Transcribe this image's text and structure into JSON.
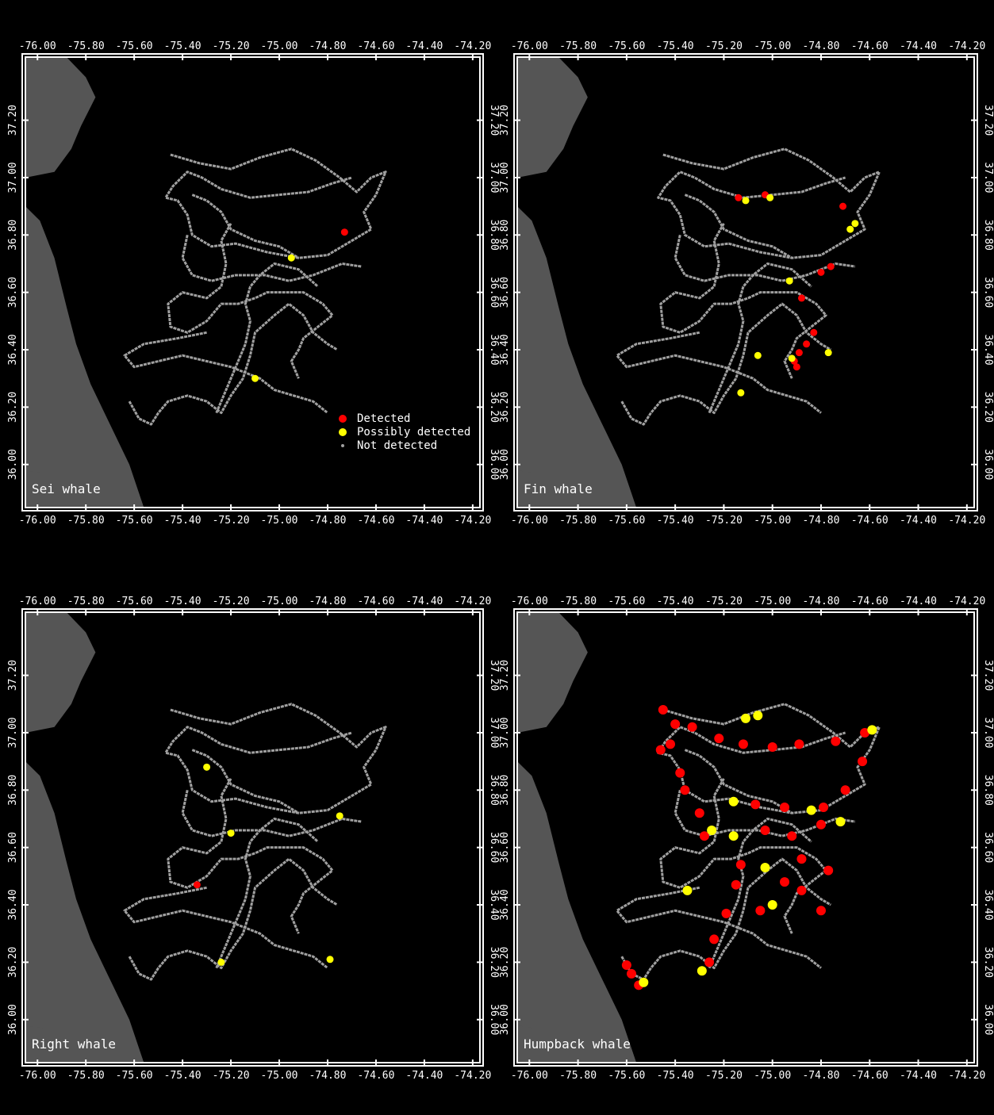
{
  "x_ticks": [
    "-76.00",
    "-75.80",
    "-75.60",
    "-75.40",
    "-75.20",
    "-75.00",
    "-74.80",
    "-74.60",
    "-74.40",
    "-74.20"
  ],
  "y_ticks": [
    "36.00",
    "36.20",
    "36.40",
    "36.60",
    "36.80",
    "37.00",
    "37.20"
  ],
  "legend": {
    "detected": "Detected",
    "possibly": "Possibly detected",
    "not_detected": "Not detected"
  },
  "colors": {
    "background": "#000000",
    "frame": "#ffffff",
    "land": "#555555",
    "track": "#a0a0a0",
    "detected": "#ff0000",
    "possibly": "#ffff00",
    "not_detected": "#a0a0a0"
  },
  "panels": [
    {
      "label": "Sei whale",
      "show_legend": true,
      "detections": [
        {
          "lon": -74.73,
          "lat": 36.81,
          "status": "detected"
        },
        {
          "lon": -74.95,
          "lat": 36.72,
          "status": "possibly"
        },
        {
          "lon": -75.1,
          "lat": 36.3,
          "status": "possibly"
        }
      ]
    },
    {
      "label": "Fin whale",
      "show_legend": false,
      "detections": [
        {
          "lon": -75.14,
          "lat": 36.93,
          "status": "detected"
        },
        {
          "lon": -75.11,
          "lat": 36.92,
          "status": "possibly"
        },
        {
          "lon": -75.03,
          "lat": 36.94,
          "status": "detected"
        },
        {
          "lon": -75.01,
          "lat": 36.93,
          "status": "possibly"
        },
        {
          "lon": -74.71,
          "lat": 36.9,
          "status": "detected"
        },
        {
          "lon": -74.66,
          "lat": 36.84,
          "status": "possibly"
        },
        {
          "lon": -74.68,
          "lat": 36.82,
          "status": "possibly"
        },
        {
          "lon": -74.8,
          "lat": 36.67,
          "status": "detected"
        },
        {
          "lon": -74.76,
          "lat": 36.69,
          "status": "detected"
        },
        {
          "lon": -74.93,
          "lat": 36.64,
          "status": "possibly"
        },
        {
          "lon": -74.88,
          "lat": 36.58,
          "status": "detected"
        },
        {
          "lon": -74.83,
          "lat": 36.46,
          "status": "detected"
        },
        {
          "lon": -74.86,
          "lat": 36.42,
          "status": "detected"
        },
        {
          "lon": -74.89,
          "lat": 36.39,
          "status": "detected"
        },
        {
          "lon": -74.91,
          "lat": 36.36,
          "status": "detected"
        },
        {
          "lon": -74.9,
          "lat": 36.34,
          "status": "detected"
        },
        {
          "lon": -74.92,
          "lat": 36.37,
          "status": "possibly"
        },
        {
          "lon": -75.06,
          "lat": 36.38,
          "status": "possibly"
        },
        {
          "lon": -75.13,
          "lat": 36.25,
          "status": "possibly"
        },
        {
          "lon": -74.77,
          "lat": 36.39,
          "status": "possibly"
        }
      ]
    },
    {
      "label": "Right whale",
      "show_legend": false,
      "detections": [
        {
          "lon": -75.3,
          "lat": 36.88,
          "status": "possibly"
        },
        {
          "lon": -74.75,
          "lat": 36.71,
          "status": "possibly"
        },
        {
          "lon": -75.2,
          "lat": 36.65,
          "status": "possibly"
        },
        {
          "lon": -75.34,
          "lat": 36.47,
          "status": "detected"
        },
        {
          "lon": -75.24,
          "lat": 36.2,
          "status": "possibly"
        },
        {
          "lon": -74.79,
          "lat": 36.21,
          "status": "possibly"
        }
      ]
    },
    {
      "label": "Humpback whale",
      "show_legend": false,
      "detections": [
        {
          "lon": -75.45,
          "lat": 37.08,
          "status": "detected"
        },
        {
          "lon": -75.4,
          "lat": 37.03,
          "status": "detected"
        },
        {
          "lon": -75.42,
          "lat": 36.96,
          "status": "detected"
        },
        {
          "lon": -75.46,
          "lat": 36.94,
          "status": "detected"
        },
        {
          "lon": -75.33,
          "lat": 37.02,
          "status": "detected"
        },
        {
          "lon": -75.22,
          "lat": 36.98,
          "status": "detected"
        },
        {
          "lon": -75.12,
          "lat": 36.96,
          "status": "detected"
        },
        {
          "lon": -75.06,
          "lat": 37.06,
          "status": "possibly"
        },
        {
          "lon": -75.11,
          "lat": 37.05,
          "status": "possibly"
        },
        {
          "lon": -75.0,
          "lat": 36.95,
          "status": "detected"
        },
        {
          "lon": -74.89,
          "lat": 36.96,
          "status": "detected"
        },
        {
          "lon": -74.74,
          "lat": 36.97,
          "status": "detected"
        },
        {
          "lon": -74.62,
          "lat": 37.0,
          "status": "detected"
        },
        {
          "lon": -74.59,
          "lat": 37.01,
          "status": "possibly"
        },
        {
          "lon": -74.63,
          "lat": 36.9,
          "status": "detected"
        },
        {
          "lon": -74.7,
          "lat": 36.8,
          "status": "detected"
        },
        {
          "lon": -74.79,
          "lat": 36.74,
          "status": "detected"
        },
        {
          "lon": -74.84,
          "lat": 36.73,
          "status": "possibly"
        },
        {
          "lon": -74.95,
          "lat": 36.74,
          "status": "detected"
        },
        {
          "lon": -75.07,
          "lat": 36.75,
          "status": "detected"
        },
        {
          "lon": -75.16,
          "lat": 36.76,
          "status": "possibly"
        },
        {
          "lon": -75.3,
          "lat": 36.72,
          "status": "detected"
        },
        {
          "lon": -75.36,
          "lat": 36.8,
          "status": "detected"
        },
        {
          "lon": -75.38,
          "lat": 36.86,
          "status": "detected"
        },
        {
          "lon": -75.28,
          "lat": 36.64,
          "status": "detected"
        },
        {
          "lon": -75.16,
          "lat": 36.64,
          "status": "possibly"
        },
        {
          "lon": -75.03,
          "lat": 36.66,
          "status": "detected"
        },
        {
          "lon": -74.92,
          "lat": 36.64,
          "status": "detected"
        },
        {
          "lon": -74.8,
          "lat": 36.68,
          "status": "detected"
        },
        {
          "lon": -74.72,
          "lat": 36.69,
          "status": "possibly"
        },
        {
          "lon": -74.88,
          "lat": 36.56,
          "status": "detected"
        },
        {
          "lon": -74.77,
          "lat": 36.52,
          "status": "detected"
        },
        {
          "lon": -74.88,
          "lat": 36.45,
          "status": "detected"
        },
        {
          "lon": -74.95,
          "lat": 36.48,
          "status": "detected"
        },
        {
          "lon": -75.03,
          "lat": 36.53,
          "status": "possibly"
        },
        {
          "lon": -75.13,
          "lat": 36.54,
          "status": "detected"
        },
        {
          "lon": -75.15,
          "lat": 36.47,
          "status": "detected"
        },
        {
          "lon": -75.19,
          "lat": 36.37,
          "status": "detected"
        },
        {
          "lon": -75.24,
          "lat": 36.28,
          "status": "detected"
        },
        {
          "lon": -75.26,
          "lat": 36.2,
          "status": "detected"
        },
        {
          "lon": -75.29,
          "lat": 36.17,
          "status": "possibly"
        },
        {
          "lon": -75.05,
          "lat": 36.38,
          "status": "detected"
        },
        {
          "lon": -75.0,
          "lat": 36.4,
          "status": "possibly"
        },
        {
          "lon": -74.8,
          "lat": 36.38,
          "status": "detected"
        },
        {
          "lon": -75.6,
          "lat": 36.19,
          "status": "detected"
        },
        {
          "lon": -75.58,
          "lat": 36.16,
          "status": "detected"
        },
        {
          "lon": -75.55,
          "lat": 36.12,
          "status": "detected"
        },
        {
          "lon": -75.53,
          "lat": 36.13,
          "status": "possibly"
        },
        {
          "lon": -75.35,
          "lat": 36.45,
          "status": "possibly"
        },
        {
          "lon": -75.25,
          "lat": 36.66,
          "status": "possibly"
        }
      ]
    }
  ]
}
